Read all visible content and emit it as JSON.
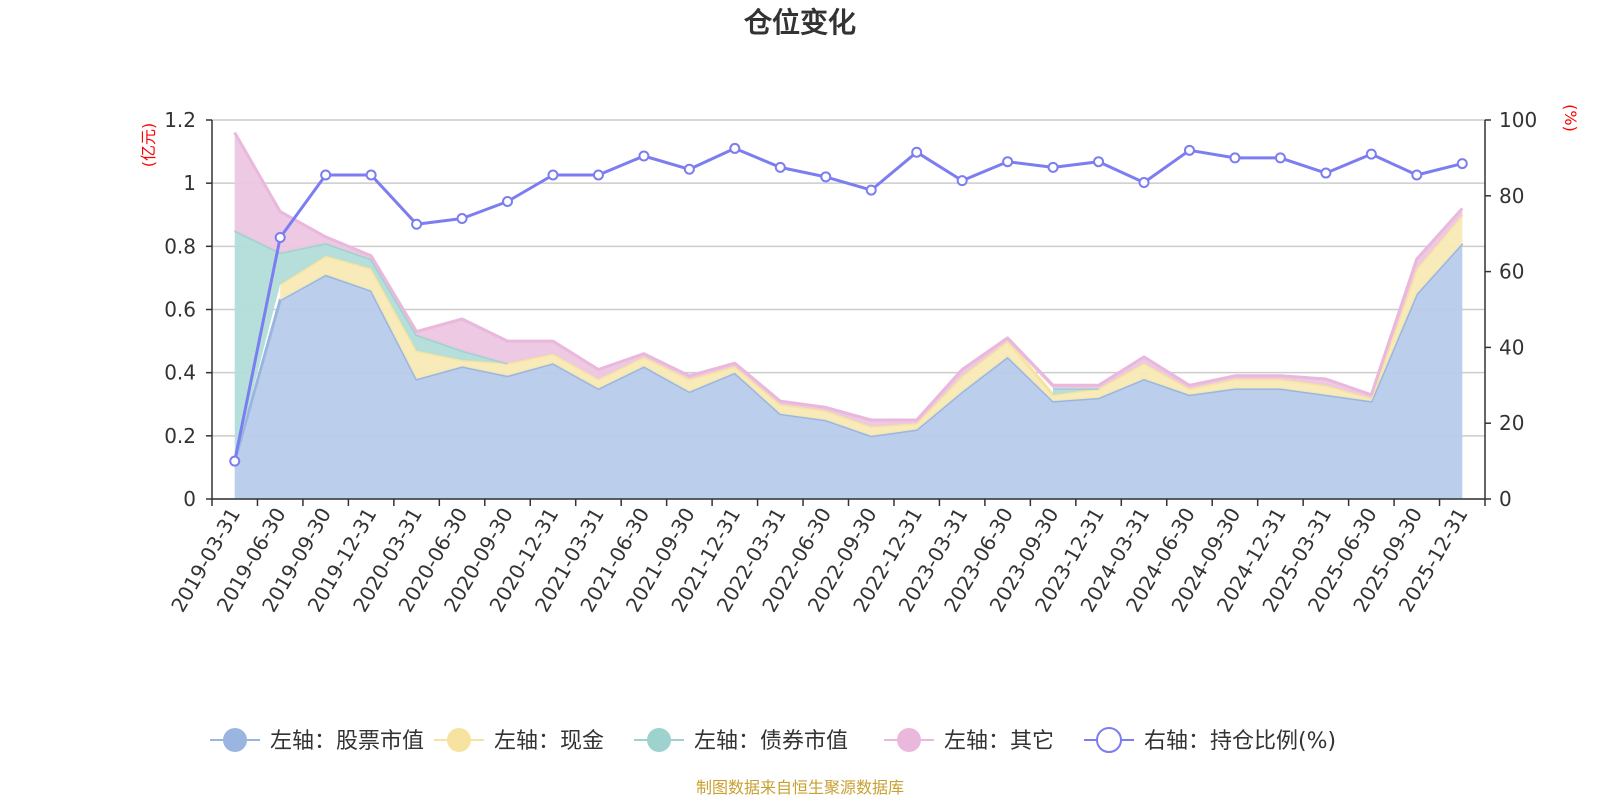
{
  "chart_data": {
    "type": "area",
    "title": "仓位变化",
    "left_unit": "(亿元)",
    "right_unit": "(%)",
    "source": "制图数据来自恒生聚源数据库",
    "ylim_left": [
      0,
      1.2
    ],
    "ylim_right": [
      0,
      100
    ],
    "left_ticks": [
      "0",
      "0.2",
      "0.4",
      "0.6",
      "0.8",
      "1",
      "1.2"
    ],
    "right_ticks": [
      "0",
      "20",
      "40",
      "60",
      "80",
      "100"
    ],
    "grid": true,
    "legend_position": "bottom",
    "categories": [
      "2019-03-31",
      "2019-06-30",
      "2019-09-30",
      "2019-12-31",
      "2020-03-31",
      "2020-06-30",
      "2020-09-30",
      "2020-12-31",
      "2021-03-31",
      "2021-06-30",
      "2021-09-30",
      "2021-12-31",
      "2022-03-31",
      "2022-06-30",
      "2022-09-30",
      "2022-12-31",
      "2023-03-31",
      "2023-06-30",
      "2023-09-30",
      "2023-12-31",
      "2024-03-31",
      "2024-06-30",
      "2024-09-30",
      "2024-12-31",
      "2025-03-31",
      "2025-06-30",
      "2025-09-30",
      "2025-12-31"
    ],
    "series": [
      {
        "name": "左轴：股票市值",
        "axis": "left",
        "type": "area",
        "color": "#9ab6e0",
        "fill": "#b7cbea",
        "values": [
          0.12,
          0.63,
          0.71,
          0.66,
          0.38,
          0.42,
          0.39,
          0.43,
          0.35,
          0.42,
          0.34,
          0.4,
          0.27,
          0.25,
          0.2,
          0.22,
          0.34,
          0.45,
          0.31,
          0.32,
          0.38,
          0.33,
          0.35,
          0.35,
          0.33,
          0.31,
          0.65,
          0.81
        ]
      },
      {
        "name": "左轴：现金",
        "axis": "left",
        "type": "area",
        "color": "#f6e3a0",
        "fill": "#f8eab5",
        "values": [
          0.0,
          0.05,
          0.06,
          0.07,
          0.09,
          0.02,
          0.04,
          0.03,
          0.03,
          0.03,
          0.04,
          0.02,
          0.03,
          0.03,
          0.03,
          0.02,
          0.05,
          0.05,
          0.02,
          0.03,
          0.05,
          0.02,
          0.03,
          0.03,
          0.03,
          0.01,
          0.08,
          0.09
        ]
      },
      {
        "name": "左轴：债券市值",
        "axis": "left",
        "type": "area",
        "color": "#9ed2cf",
        "fill": "#b2ddda",
        "values": [
          0.73,
          0.1,
          0.04,
          0.03,
          0.05,
          0.03,
          0.0,
          0.0,
          0.0,
          0.0,
          0.0,
          0.0,
          0.0,
          0.0,
          0.0,
          0.0,
          0.0,
          0.0,
          0.02,
          0.0,
          0.0,
          0.0,
          0.0,
          0.0,
          0.0,
          0.0,
          0.0,
          0.0
        ]
      },
      {
        "name": "左轴：其它",
        "axis": "left",
        "type": "area",
        "color": "#e9b8dc",
        "fill": "#ecc6e2",
        "values": [
          0.31,
          0.13,
          0.02,
          0.01,
          0.01,
          0.1,
          0.07,
          0.04,
          0.03,
          0.01,
          0.01,
          0.01,
          0.01,
          0.01,
          0.02,
          0.01,
          0.02,
          0.01,
          0.01,
          0.01,
          0.02,
          0.01,
          0.01,
          0.01,
          0.02,
          0.01,
          0.03,
          0.02
        ]
      },
      {
        "name": "右轴：持仓比例(%)",
        "axis": "right",
        "type": "line",
        "color": "#7b7df0",
        "values": [
          10,
          69,
          85.5,
          85.5,
          72.5,
          74,
          78.5,
          85.5,
          85.5,
          90.5,
          87,
          92.5,
          87.5,
          85,
          81.5,
          91.5,
          84,
          89,
          87.5,
          89,
          83.5,
          92,
          90,
          90,
          86,
          91,
          85.5,
          88.5
        ]
      }
    ]
  }
}
